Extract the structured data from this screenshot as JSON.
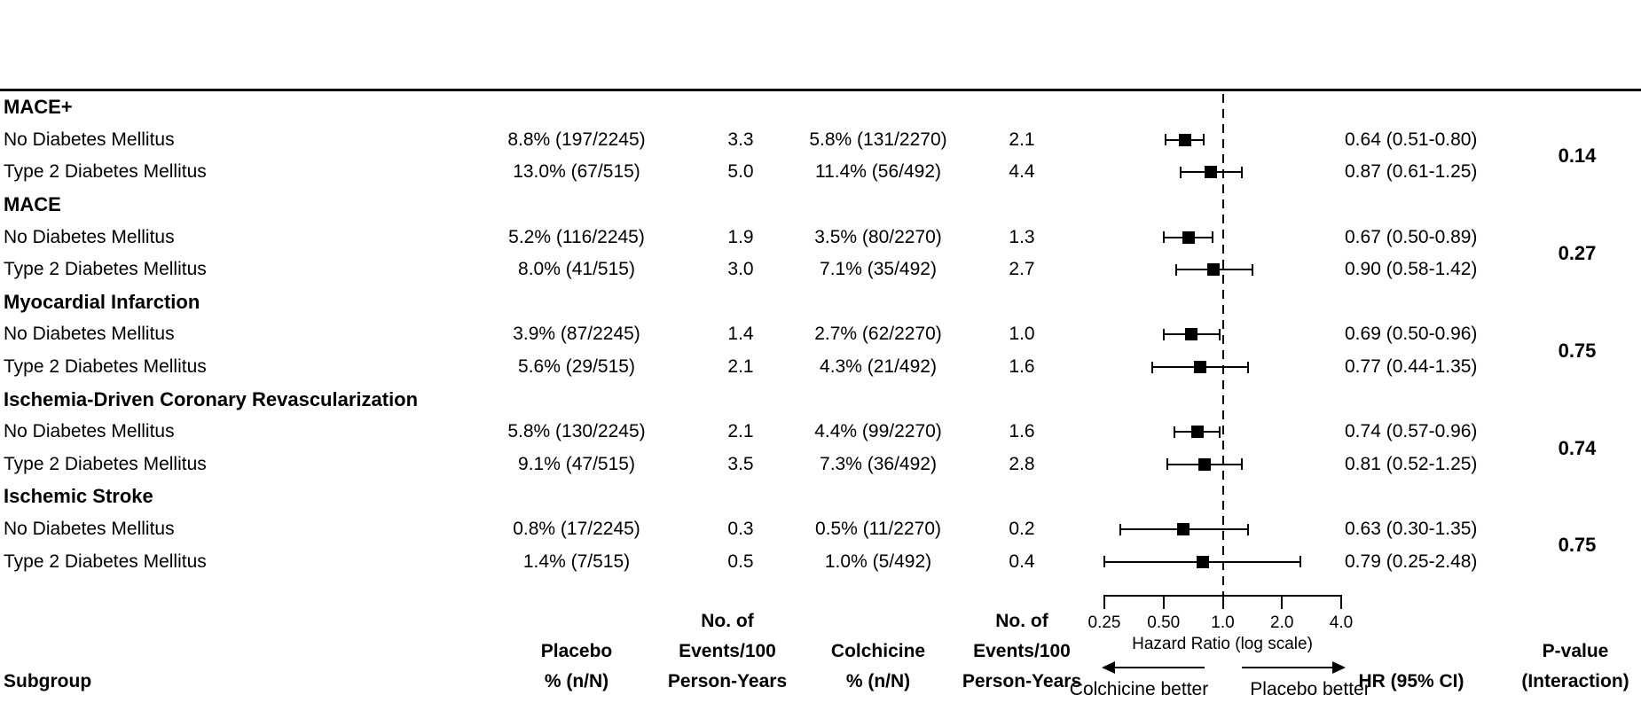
{
  "figure": {
    "header": {
      "subgroup": "Subgroup",
      "placebo": {
        "line1": "Placebo",
        "line2": "% (n/N)"
      },
      "placebo_events": {
        "line0": "No. of",
        "line1": "Events/100",
        "line2": "Person-Years"
      },
      "colchicine": {
        "line1": "Colchicine",
        "line2": "% (n/N)"
      },
      "colchicine_events": {
        "line0": "No. of",
        "line1": "Events/100",
        "line2": "Person-Years"
      },
      "hr": "HR (95% CI)",
      "pvalue": {
        "line1": "P-value",
        "line2": "(Interaction)"
      }
    }
  },
  "chart_data": {
    "type": "forest",
    "title": "",
    "xlabel": "Hazard Ratio (log scale)",
    "x_scale": "log",
    "x_range": [
      0.25,
      4.0
    ],
    "x_ticks": [
      0.25,
      0.5,
      1.0,
      2.0,
      4.0
    ],
    "x_tick_labels": [
      "0.25",
      "0.50",
      "1.0",
      "2.0",
      "4.0"
    ],
    "reference_line": 1.0,
    "left_arrow_label": "Colchicine better",
    "right_arrow_label": "Placebo better",
    "colors": {
      "marker": "#000000",
      "text": "#000000",
      "background": "#ffffff"
    },
    "sections": [
      {
        "name": "MACE+",
        "p_interaction": "0.14",
        "rows": [
          {
            "subgroup": "No Diabetes Mellitus",
            "placebo": "8.8% (197/2245)",
            "placebo_rate": "3.3",
            "colchicine": "5.8% (131/2270)",
            "colchicine_rate": "2.1",
            "hr": 0.64,
            "ci_low": 0.51,
            "ci_high": 0.8,
            "hr_text": "0.64 (0.51-0.80)"
          },
          {
            "subgroup": "Type 2 Diabetes Mellitus",
            "placebo": "13.0% (67/515)",
            "placebo_rate": "5.0",
            "colchicine": "11.4% (56/492)",
            "colchicine_rate": "4.4",
            "hr": 0.87,
            "ci_low": 0.61,
            "ci_high": 1.25,
            "hr_text": "0.87 (0.61-1.25)"
          }
        ]
      },
      {
        "name": "MACE",
        "p_interaction": "0.27",
        "rows": [
          {
            "subgroup": "No Diabetes Mellitus",
            "placebo": "5.2% (116/2245)",
            "placebo_rate": "1.9",
            "colchicine": "3.5% (80/2270)",
            "colchicine_rate": "1.3",
            "hr": 0.67,
            "ci_low": 0.5,
            "ci_high": 0.89,
            "hr_text": "0.67 (0.50-0.89)"
          },
          {
            "subgroup": "Type 2 Diabetes Mellitus",
            "placebo": "8.0% (41/515)",
            "placebo_rate": "3.0",
            "colchicine": "7.1% (35/492)",
            "colchicine_rate": "2.7",
            "hr": 0.9,
            "ci_low": 0.58,
            "ci_high": 1.42,
            "hr_text": "0.90 (0.58-1.42)"
          }
        ]
      },
      {
        "name": "Myocardial Infarction",
        "p_interaction": "0.75",
        "rows": [
          {
            "subgroup": "No Diabetes Mellitus",
            "placebo": "3.9% (87/2245)",
            "placebo_rate": "1.4",
            "colchicine": "2.7% (62/2270)",
            "colchicine_rate": "1.0",
            "hr": 0.69,
            "ci_low": 0.5,
            "ci_high": 0.96,
            "hr_text": "0.69 (0.50-0.96)"
          },
          {
            "subgroup": "Type 2 Diabetes Mellitus",
            "placebo": "5.6% (29/515)",
            "placebo_rate": "2.1",
            "colchicine": "4.3% (21/492)",
            "colchicine_rate": "1.6",
            "hr": 0.77,
            "ci_low": 0.44,
            "ci_high": 1.35,
            "hr_text": "0.77 (0.44-1.35)"
          }
        ]
      },
      {
        "name": "Ischemia-Driven Coronary Revascularization",
        "p_interaction": "0.74",
        "rows": [
          {
            "subgroup": "No Diabetes Mellitus",
            "placebo": "5.8% (130/2245)",
            "placebo_rate": "2.1",
            "colchicine": "4.4% (99/2270)",
            "colchicine_rate": "1.6",
            "hr": 0.74,
            "ci_low": 0.57,
            "ci_high": 0.96,
            "hr_text": "0.74 (0.57-0.96)"
          },
          {
            "subgroup": "Type 2 Diabetes Mellitus",
            "placebo": "9.1% (47/515)",
            "placebo_rate": "3.5",
            "colchicine": "7.3% (36/492)",
            "colchicine_rate": "2.8",
            "hr": 0.81,
            "ci_low": 0.52,
            "ci_high": 1.25,
            "hr_text": "0.81 (0.52-1.25)"
          }
        ]
      },
      {
        "name": "Ischemic Stroke",
        "p_interaction": "0.75",
        "rows": [
          {
            "subgroup": "No Diabetes Mellitus",
            "placebo": "0.8% (17/2245)",
            "placebo_rate": "0.3",
            "colchicine": "0.5% (11/2270)",
            "colchicine_rate": "0.2",
            "hr": 0.63,
            "ci_low": 0.3,
            "ci_high": 1.35,
            "hr_text": "0.63 (0.30-1.35)"
          },
          {
            "subgroup": "Type 2 Diabetes Mellitus",
            "placebo": "1.4% (7/515)",
            "placebo_rate": "0.5",
            "colchicine": "1.0% (5/492)",
            "colchicine_rate": "0.4",
            "hr": 0.79,
            "ci_low": 0.25,
            "ci_high": 2.48,
            "hr_text": "0.79 (0.25-2.48)"
          }
        ]
      }
    ]
  }
}
